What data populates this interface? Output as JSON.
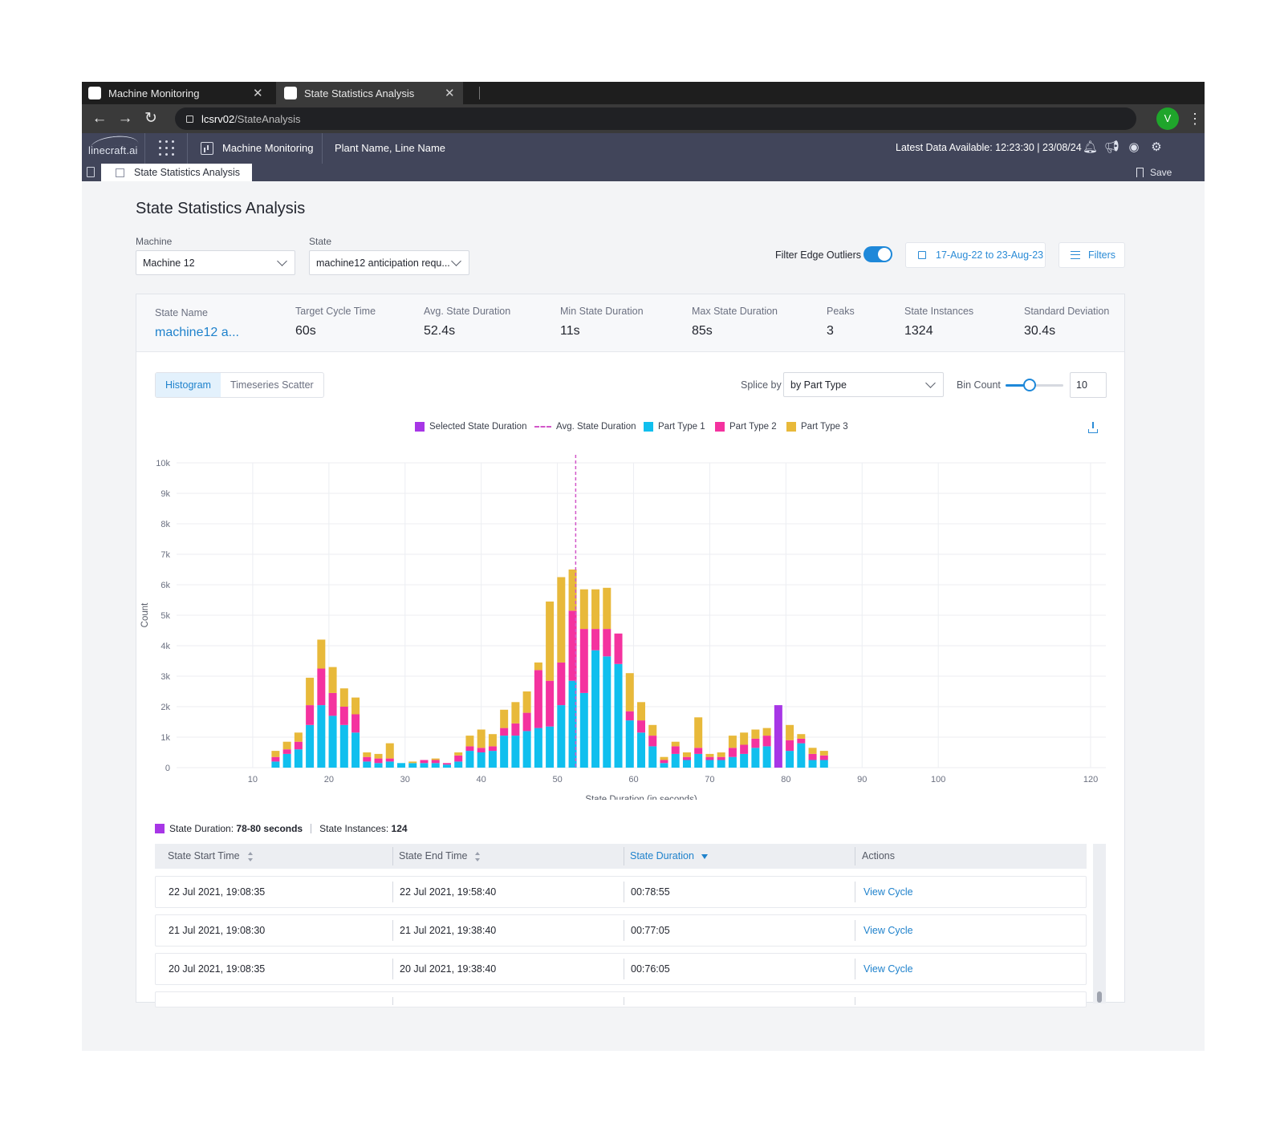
{
  "browser": {
    "tabs": [
      {
        "title": "Machine Monitoring",
        "active": false
      },
      {
        "title": "State Statistics Analysis",
        "active": true
      }
    ],
    "url_host": "lcsrv02",
    "url_path": "/StateAnalysis",
    "profile_initial": "V"
  },
  "app": {
    "logo": "linecraft.ai",
    "module": "Machine Monitoring",
    "location": "Plant Name, Line Name",
    "latest_data": "Latest Data Available: 12:23:30 | 23/08/24",
    "subtab": "State Statistics Analysis",
    "save_label": "Save"
  },
  "page": {
    "title": "State Statistics Analysis",
    "machine_label": "Machine",
    "machine_value": "Machine 12",
    "state_label": "State",
    "state_value": "machine12 anticipation requ...",
    "filter_edge_label": "Filter Edge Outliers",
    "filter_edge_on": true,
    "date_range": "17-Aug-22 to 23-Aug-23",
    "filters_label": "Filters"
  },
  "stats": [
    {
      "label": "State Name",
      "value": "machine12 a..."
    },
    {
      "label": "Target Cycle Time",
      "value": "60s"
    },
    {
      "label": "Avg. State Duration",
      "value": "52.4s"
    },
    {
      "label": "Min State Duration",
      "value": "11s"
    },
    {
      "label": "Max State Duration",
      "value": "85s"
    },
    {
      "label": "Peaks",
      "value": "3"
    },
    {
      "label": "State Instances",
      "value": "1324"
    },
    {
      "label": "Standard Deviation",
      "value": "30.4s"
    }
  ],
  "controls": {
    "view_tabs": [
      "Histogram",
      "Timeseries Scatter"
    ],
    "active_view": "Histogram",
    "splice_label": "Splice by",
    "splice_value": "by Part Type",
    "bin_label": "Bin Count",
    "bin_value": "10",
    "bin_slider_level": 0.4
  },
  "legend": [
    {
      "label": "Selected State Duration",
      "color": "#a736e6"
    },
    {
      "label": "Avg. State Duration",
      "color": "#d257c9"
    },
    {
      "label": "Part Type 1",
      "color": "#10bfee"
    },
    {
      "label": "Part Type 2",
      "color": "#f4329f"
    },
    {
      "label": "Part Type 3",
      "color": "#e8b93a"
    }
  ],
  "chart_data": {
    "type": "bar",
    "stacked": true,
    "xlabel": "State Duration (in seconds)",
    "ylabel": "Count",
    "ylim": [
      0,
      10000
    ],
    "yticks": [
      0,
      1000,
      2000,
      3000,
      4000,
      5000,
      6000,
      7000,
      8000,
      9000,
      10000
    ],
    "ytick_labels": [
      "0",
      "1k",
      "2k",
      "3k",
      "4k",
      "5k",
      "6k",
      "7k",
      "8k",
      "9k",
      "10k"
    ],
    "xticks": [
      10,
      20,
      30,
      40,
      50,
      60,
      70,
      80,
      90,
      100,
      120
    ],
    "avg_line": 52.4,
    "grid": true,
    "colors": {
      "Part Type 1": "#10bfee",
      "Part Type 2": "#f4329f",
      "Part Type 3": "#e8b93a",
      "Selected": "#a736e6"
    },
    "x": [
      13,
      14.5,
      16,
      17.5,
      19,
      20.5,
      22,
      23.5,
      25,
      26.5,
      28,
      29.5,
      31,
      32.5,
      34,
      35.5,
      37,
      38.5,
      40,
      41.5,
      43,
      44.5,
      46,
      47.5,
      49,
      50.5,
      52,
      53.5,
      55,
      56.5,
      58,
      59.5,
      61,
      62.5,
      64,
      65.5,
      67,
      68.5,
      70,
      71.5,
      73,
      74.5,
      76,
      77.5,
      79,
      80.5,
      82,
      83.5,
      85
    ],
    "selected_index": 44,
    "series": [
      {
        "name": "Part Type 1",
        "values": [
          200,
          450,
          600,
          1400,
          2050,
          1700,
          1400,
          1150,
          200,
          150,
          200,
          150,
          150,
          150,
          150,
          100,
          200,
          550,
          500,
          550,
          1050,
          1050,
          1200,
          1300,
          1350,
          2050,
          2850,
          2450,
          3850,
          3650,
          3400,
          1550,
          1150,
          700,
          150,
          450,
          250,
          450,
          250,
          250,
          350,
          450,
          650,
          700,
          2050,
          550,
          800,
          250,
          250
        ]
      },
      {
        "name": "Part Type 2",
        "values": [
          150,
          150,
          250,
          650,
          1200,
          750,
          600,
          600,
          150,
          150,
          100,
          0,
          0,
          100,
          100,
          50,
          200,
          150,
          150,
          150,
          250,
          400,
          600,
          1900,
          1500,
          1400,
          2300,
          2100,
          700,
          900,
          1000,
          300,
          400,
          350,
          100,
          250,
          100,
          200,
          100,
          100,
          300,
          300,
          300,
          350,
          0,
          350,
          150,
          200,
          150
        ]
      },
      {
        "name": "Part Type 3",
        "values": [
          200,
          250,
          300,
          900,
          950,
          850,
          600,
          550,
          150,
          150,
          500,
          0,
          50,
          0,
          50,
          0,
          100,
          350,
          600,
          400,
          600,
          700,
          700,
          250,
          2600,
          2800,
          1350,
          1300,
          1300,
          1350,
          0,
          1250,
          600,
          350,
          100,
          150,
          150,
          1000,
          100,
          150,
          400,
          400,
          300,
          250,
          0,
          500,
          150,
          200,
          150
        ]
      }
    ]
  },
  "selection": {
    "label": "State Duration:",
    "range": "78-80 seconds",
    "instances_label": "State Instances:",
    "instances_value": "124"
  },
  "table": {
    "columns": [
      "State Start Time",
      "State End Time",
      "State Duration",
      "Actions"
    ],
    "sorted_column": "State Duration",
    "rows": [
      {
        "start": "22 Jul 2021, 19:08:35",
        "end": "22 Jul 2021, 19:58:40",
        "duration": "00:78:55",
        "action": "View Cycle"
      },
      {
        "start": "21 Jul 2021, 19:08:30",
        "end": "21 Jul 2021, 19:38:40",
        "duration": "00:77:05",
        "action": "View Cycle"
      },
      {
        "start": "20 Jul 2021, 19:08:35",
        "end": "20 Jul 2021, 19:38:40",
        "duration": "00:76:05",
        "action": "View Cycle"
      }
    ]
  }
}
